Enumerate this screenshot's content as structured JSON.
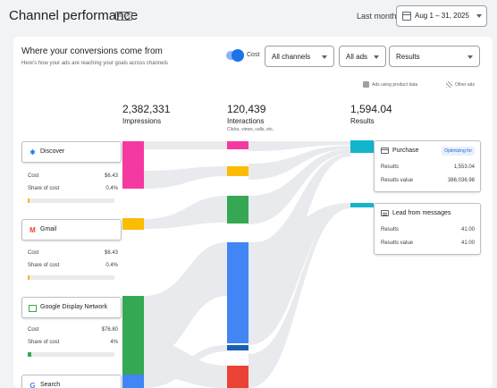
{
  "header": {
    "title": "Channel performance",
    "beta": "BETA",
    "date_label": "Last month",
    "date_range": "Aug 1 – 31, 2025"
  },
  "card": {
    "title": "Where your conversions come from",
    "subtitle": "Here's how your ads are reaching your goals across channels"
  },
  "controls": {
    "toggle_label": "Cost",
    "toggle_on": true,
    "channels": "All channels",
    "ads": "All ads",
    "metric": "Results"
  },
  "options": {
    "product_data": "Ads using product data",
    "other_ads": "Other ads"
  },
  "metrics": [
    {
      "value": "2,382,331",
      "label": "Impressions",
      "sub": ""
    },
    {
      "value": "120,439",
      "label": "Interactions",
      "sub": "Clicks, views, calls, etc."
    },
    {
      "value": "1,594.04",
      "label": "Results",
      "sub": ""
    }
  ],
  "sources": [
    {
      "name": "Discover",
      "icon": "discover-icon",
      "cost_label": "Cost",
      "cost": "$6.43",
      "share_label": "Share of cost",
      "share": "0.4%",
      "share_value": 0.004,
      "color": "#f439a0"
    },
    {
      "name": "Gmail",
      "icon": "gmail-icon",
      "cost_label": "Cost",
      "cost": "$6.43",
      "share_label": "Share of cost",
      "share": "0.4%",
      "share_value": 0.004,
      "color": "#fbbc04"
    },
    {
      "name": "Google Display Network",
      "icon": "display-network-icon",
      "cost_label": "Cost",
      "cost": "$76.80",
      "share_label": "Share of cost",
      "share": "4%",
      "share_value": 0.04,
      "color": "#34a853"
    },
    {
      "name": "Search",
      "icon": "search-icon",
      "color": "#4285f4"
    }
  ],
  "results": [
    {
      "title": "Purchase",
      "badge": "Optimizing for",
      "rows": [
        {
          "label": "Results",
          "value": "1,553.04"
        },
        {
          "label": "Results value",
          "value": "386,036.98"
        }
      ]
    },
    {
      "title": "Lead from messages",
      "badge": "",
      "rows": [
        {
          "label": "Results",
          "value": "41.00"
        },
        {
          "label": "Results value",
          "value": "41.00"
        }
      ]
    }
  ],
  "colors": {
    "pink": "#f439a0",
    "yellow": "#fbbc04",
    "green": "#34a853",
    "blue": "#4285f4",
    "dark_blue": "#1a5fb4",
    "red": "#ea4335",
    "teal": "#12b5cb"
  }
}
